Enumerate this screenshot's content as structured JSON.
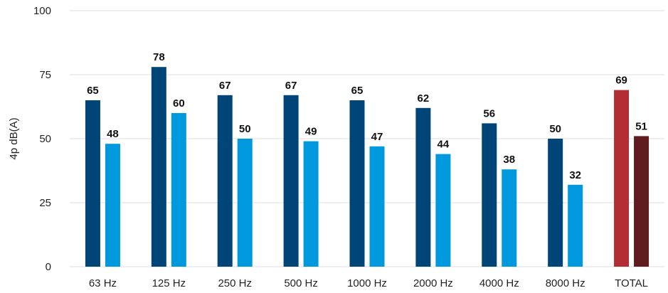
{
  "chart_data": {
    "type": "bar",
    "ylabel": "4p dB(A)",
    "ylim": [
      0,
      100
    ],
    "yticks": [
      0,
      25,
      50,
      75,
      100
    ],
    "grid": true,
    "categories": [
      "63 Hz",
      "125 Hz",
      "250 Hz",
      "500 Hz",
      "1000 Hz",
      "2000 Hz",
      "4000 Hz",
      "8000 Hz",
      "TOTAL"
    ],
    "series": [
      {
        "values": [
          65,
          78,
          67,
          67,
          65,
          62,
          56,
          50,
          69
        ]
      },
      {
        "values": [
          48,
          60,
          50,
          49,
          47,
          44,
          38,
          32,
          51
        ]
      }
    ],
    "colors": {
      "series1": "#004578",
      "series2": "#0099DD",
      "total_series1": "#B22E34",
      "total_series2": "#611C20"
    }
  }
}
